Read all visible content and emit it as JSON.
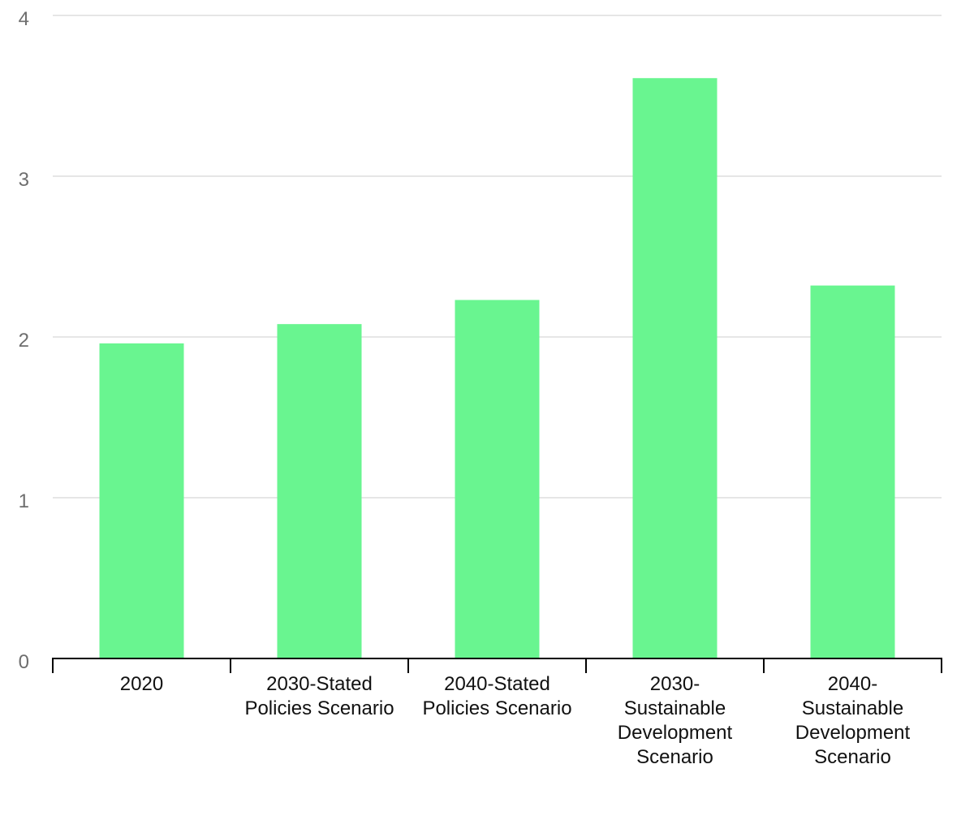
{
  "chart_data": {
    "type": "bar",
    "title": "",
    "xlabel": "",
    "ylabel": "",
    "categories": [
      "2020",
      "2030-Stated Policies Scenario",
      "2040-Stated Policies Scenario",
      "2030-Sustainable Development Scenario",
      "2040-Sustainable Development Scenario"
    ],
    "category_label_lines": [
      [
        "2020"
      ],
      [
        "2030-Stated",
        "Policies Scenario"
      ],
      [
        "2040-Stated",
        "Policies Scenario"
      ],
      [
        "2030-",
        "Sustainable",
        "Development",
        "Scenario"
      ],
      [
        "2040-",
        "Sustainable",
        "Development",
        "Scenario"
      ]
    ],
    "values": [
      1.96,
      2.08,
      2.23,
      3.61,
      2.32
    ],
    "ylim": [
      0,
      4
    ],
    "y_ticks": [
      0,
      1,
      2,
      3,
      4
    ],
    "grid": true,
    "legend": "none",
    "bar_color": "#69f590"
  }
}
